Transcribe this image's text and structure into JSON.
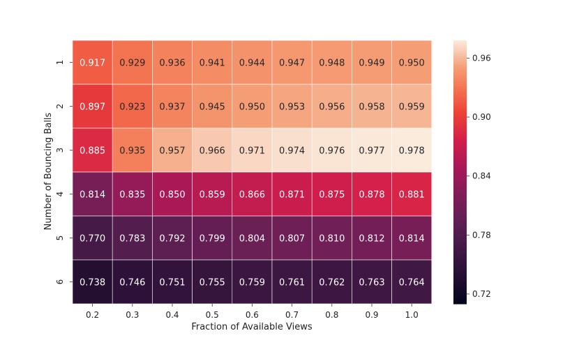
{
  "chart_data": {
    "type": "heatmap",
    "title": "",
    "xlabel": "Fraction of Available Views",
    "ylabel": "Number of Bouncing Balls",
    "x_categories": [
      "0.2",
      "0.3",
      "0.4",
      "0.5",
      "0.6",
      "0.7",
      "0.8",
      "0.9",
      "1.0"
    ],
    "y_categories": [
      "1",
      "2",
      "3",
      "4",
      "5",
      "6"
    ],
    "values": [
      [
        0.917,
        0.929,
        0.936,
        0.941,
        0.944,
        0.947,
        0.948,
        0.949,
        0.95
      ],
      [
        0.897,
        0.923,
        0.937,
        0.945,
        0.95,
        0.953,
        0.956,
        0.958,
        0.959
      ],
      [
        0.885,
        0.935,
        0.957,
        0.966,
        0.971,
        0.974,
        0.976,
        0.977,
        0.978
      ],
      [
        0.814,
        0.835,
        0.85,
        0.859,
        0.866,
        0.871,
        0.875,
        0.878,
        0.881
      ],
      [
        0.77,
        0.783,
        0.792,
        0.799,
        0.804,
        0.807,
        0.81,
        0.812,
        0.814
      ],
      [
        0.738,
        0.746,
        0.751,
        0.755,
        0.759,
        0.761,
        0.762,
        0.763,
        0.764
      ]
    ],
    "value_labels": [
      [
        "0.917",
        "0.929",
        "0.936",
        "0.941",
        "0.944",
        "0.947",
        "0.948",
        "0.949",
        "0.950"
      ],
      [
        "0.897",
        "0.923",
        "0.937",
        "0.945",
        "0.950",
        "0.953",
        "0.956",
        "0.958",
        "0.959"
      ],
      [
        "0.885",
        "0.935",
        "0.957",
        "0.966",
        "0.971",
        "0.974",
        "0.976",
        "0.977",
        "0.978"
      ],
      [
        "0.814",
        "0.835",
        "0.850",
        "0.859",
        "0.866",
        "0.871",
        "0.875",
        "0.878",
        "0.881"
      ],
      [
        "0.770",
        "0.783",
        "0.792",
        "0.799",
        "0.804",
        "0.807",
        "0.810",
        "0.812",
        "0.814"
      ],
      [
        "0.738",
        "0.746",
        "0.751",
        "0.755",
        "0.759",
        "0.761",
        "0.762",
        "0.763",
        "0.764"
      ]
    ],
    "colorbar": {
      "range": [
        0.71,
        0.978
      ],
      "ticks": [
        0.72,
        0.78,
        0.84,
        0.9,
        0.96
      ],
      "tick_labels": [
        "0.72",
        "0.78",
        "0.84",
        "0.90",
        "0.96"
      ],
      "colormap": "rocket"
    },
    "grid": false,
    "legend": "colorbar-right"
  }
}
